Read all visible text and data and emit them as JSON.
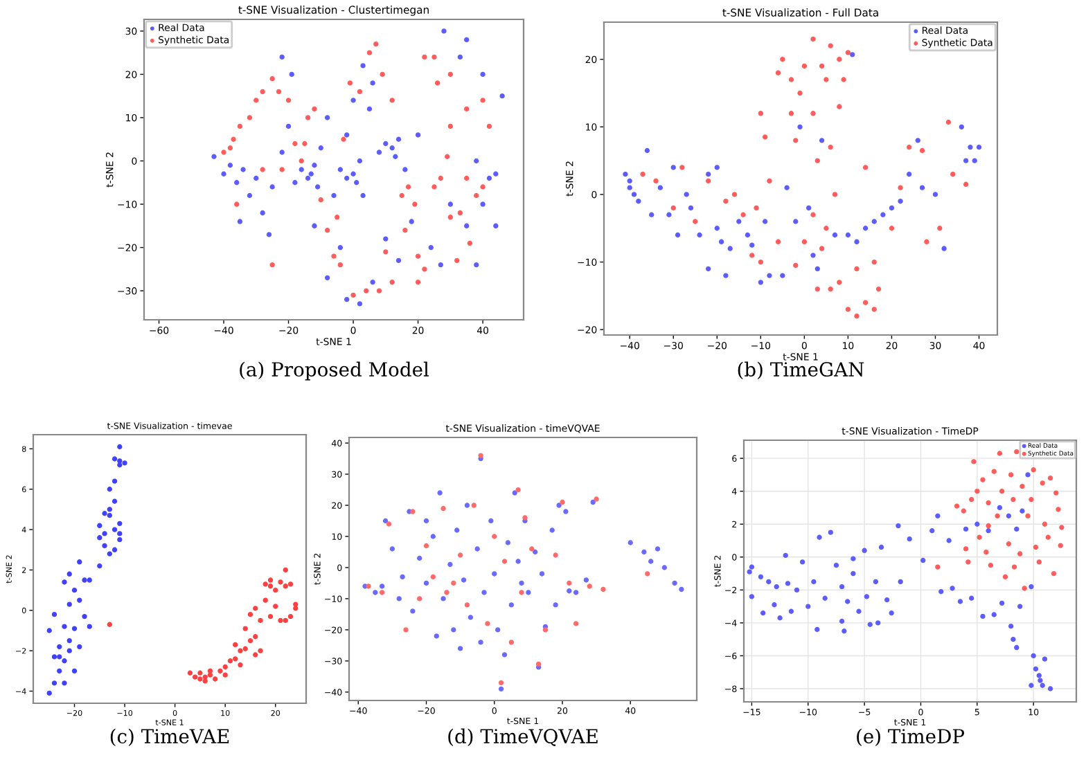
{
  "chart_data": [
    {
      "type": "scatter",
      "title": "t-SNE Visualization - Clustertimegan",
      "xlabel": "t-SNE 1",
      "ylabel": "t-SNE 2",
      "annotations": [
        "(a) Proposed Model"
      ],
      "marker": "circle",
      "legend": "top left",
      "xlim": [
        -64.6,
        52.6
      ],
      "ylim": [
        -36.7,
        32.7
      ],
      "xticks": [
        -60,
        -40,
        -20,
        0,
        20,
        40
      ],
      "yticks": [
        -30,
        -20,
        -10,
        0,
        10,
        20,
        30
      ],
      "series": [
        {
          "name": "Real Data",
          "color": "#5c5cff",
          "x": [
            -43,
            -40,
            -38,
            -36,
            -34,
            -32,
            -30,
            -28,
            -25,
            -22,
            -20,
            -18,
            -16,
            -14,
            -13,
            -12,
            -11,
            -10,
            -8,
            -6,
            -4,
            -2,
            0,
            1,
            2,
            3,
            5,
            6,
            3,
            0,
            -2,
            8,
            10,
            12,
            13,
            14,
            16,
            18,
            20,
            24,
            27,
            30,
            35,
            38,
            40,
            42,
            44,
            46,
            40,
            35,
            28,
            -22,
            -19,
            -12,
            -8,
            -2,
            2,
            6,
            10,
            14,
            -4,
            -26,
            -35,
            38,
            44,
            33
          ],
          "values": [
            1,
            -3,
            -1,
            -5,
            -2,
            -8,
            -4,
            -12,
            -6,
            2,
            8,
            -5,
            -2,
            -4,
            -3,
            -1,
            -6,
            3,
            10,
            -8,
            -2,
            -4,
            -3,
            -5,
            0,
            -8,
            12,
            18,
            22,
            14,
            6,
            2,
            4,
            3,
            1,
            5,
            -2,
            -14,
            6,
            -20,
            -24,
            -10,
            -15,
            0,
            -10,
            -4,
            -3,
            15,
            20,
            28,
            30,
            24,
            20,
            -15,
            -27,
            -32,
            -33,
            -28,
            -18,
            -23,
            -20,
            -17,
            -14,
            -24,
            -15,
            24
          ]
        },
        {
          "name": "Synthetic Data",
          "color": "#ff5c5c",
          "x": [
            -40,
            -38,
            -37,
            -36,
            -35,
            -32,
            -30,
            -28,
            -25,
            -23,
            -20,
            -18,
            -16,
            -14,
            -12,
            -10,
            -8,
            -6,
            -4,
            -3,
            -1,
            2,
            5,
            7,
            9,
            12,
            15,
            17,
            19,
            20,
            22,
            20,
            25,
            27,
            29,
            30,
            33,
            35,
            38,
            40,
            40,
            42,
            35,
            30,
            26,
            22,
            25,
            30,
            -25,
            -22,
            0,
            4,
            8,
            12,
            10,
            -28,
            -15,
            -5,
            16,
            32,
            36
          ],
          "values": [
            2,
            3,
            5,
            -10,
            8,
            10,
            14,
            16,
            19,
            16,
            14,
            4,
            0,
            10,
            12,
            -9,
            -16,
            -22,
            -24,
            5,
            18,
            16,
            25,
            27,
            20,
            14,
            -8,
            -6,
            -10,
            -22,
            -25,
            -28,
            -6,
            -4,
            1,
            -13,
            -12,
            -4,
            -8,
            -6,
            14,
            8,
            12,
            8,
            18,
            24,
            24,
            20,
            -24,
            -2,
            -31,
            -30,
            -30,
            -28,
            -21,
            -2,
            4,
            -13,
            -16,
            -23,
            -19
          ]
        }
      ]
    },
    {
      "type": "scatter",
      "title": "t-SNE Visualization - Full Data",
      "xlabel": "t-SNE 1",
      "ylabel": "t-SNE 2",
      "annotations": [
        "(b) TimeGAN"
      ],
      "marker": "circle",
      "legend": "top right",
      "xlim": [
        -45.9,
        44.2
      ],
      "ylim": [
        -20.8,
        25.5
      ],
      "xticks": [
        -40,
        -30,
        -20,
        -10,
        0,
        10,
        20,
        30,
        40
      ],
      "yticks": [
        -20,
        -10,
        0,
        10,
        20
      ],
      "series": [
        {
          "name": "Real Data",
          "color": "#5c5cff",
          "x": [
            -40,
            -40,
            -39,
            -41,
            -38,
            -36,
            -35,
            -33,
            -31,
            -29,
            -27,
            -26,
            -24,
            -22,
            -20,
            -19,
            -18,
            -17,
            -15,
            -13,
            -12,
            -10,
            -8,
            -9,
            -22,
            -30,
            -20,
            -4,
            -2,
            -1,
            1,
            2,
            3,
            4,
            7,
            10,
            12,
            14,
            16,
            18,
            20,
            22,
            24,
            26,
            27,
            30,
            32,
            36,
            38,
            39,
            40,
            37,
            -5,
            11
          ],
          "values": [
            1,
            2,
            0,
            3,
            -1,
            6.5,
            -3,
            1,
            -3,
            -6,
            0,
            -2,
            -6,
            -11,
            -5,
            -7,
            -12,
            -8,
            -4,
            -6,
            -7.5,
            -13,
            -12,
            -4,
            3,
            4,
            4,
            1,
            -4,
            10,
            -2,
            -9,
            -11,
            8,
            -6,
            -6,
            -7,
            -5,
            -4,
            -3,
            -2,
            -1,
            3,
            8,
            1,
            0,
            -8,
            10,
            7,
            5,
            7,
            5,
            -12,
            20.7
          ]
        },
        {
          "name": "Synthetic Data",
          "color": "#ff5c5c",
          "x": [
            -37,
            -34,
            -30,
            -28,
            -25,
            -22,
            -18,
            -16,
            -14,
            -12,
            -11,
            -10,
            -10,
            -9,
            -8,
            -6,
            -6,
            -5,
            -3,
            -3,
            -2,
            -1,
            0,
            2,
            2,
            3,
            4,
            5,
            6,
            8,
            9,
            10,
            8,
            6,
            7,
            5,
            4,
            2,
            0,
            -2,
            3,
            6,
            8,
            10,
            12,
            14,
            16,
            17,
            12,
            16,
            20,
            24,
            27,
            28,
            31,
            33,
            34,
            37,
            14,
            22
          ],
          "values": [
            3,
            2,
            -2,
            4,
            -4,
            2,
            -1,
            0,
            -3,
            -9,
            -2,
            -10,
            12,
            8.5,
            2,
            -7,
            18,
            20,
            17,
            12,
            8,
            15,
            19,
            23,
            12,
            5,
            19,
            17,
            22,
            20,
            17,
            21,
            13,
            7,
            0,
            -5,
            -8,
            -3,
            -7,
            -10.5,
            -14,
            -14,
            -13,
            -17,
            -18,
            -16,
            -17,
            -14,
            -11,
            -10,
            -5,
            7,
            6.5,
            -7,
            -5,
            10.7,
            3,
            1.5,
            4,
            1
          ]
        }
      ]
    },
    {
      "type": "scatter",
      "title": "t-SNE Visualization - timevae",
      "xlabel": "t-SNE 1",
      "ylabel": "t-SNE 2",
      "annotations": [
        "(c) TimeVAE"
      ],
      "marker": "circle",
      "xlim": [
        -28.2,
        26.1
      ],
      "ylim": [
        -4.6,
        8.7
      ],
      "xticks": [
        -20,
        -10,
        0,
        10,
        20
      ],
      "yticks": [
        -4,
        -2,
        0,
        2,
        4,
        6,
        8
      ],
      "series": [
        {
          "color": "#4040ff",
          "x": [
            -25,
            -24,
            -24,
            -23,
            -23,
            -22,
            -22,
            -21,
            -21,
            -20,
            -20,
            -19,
            -19,
            -18,
            -18,
            -17,
            -17,
            -19,
            -21,
            -22,
            -24,
            -23,
            -25,
            -21,
            -20,
            -22,
            -15,
            -14,
            -13,
            -12,
            -11,
            -15,
            -14,
            -13,
            -12,
            -11,
            -13,
            -12,
            -13,
            -11,
            -12,
            -11,
            -10,
            -11,
            -14,
            -12,
            -11,
            -15
          ],
          "values": [
            -4.1,
            -3.6,
            -2.3,
            -3,
            -1.8,
            -2.5,
            -0.8,
            -1.5,
            0.3,
            -0.9,
            1,
            0.5,
            -1.8,
            -0.3,
            1.5,
            1.5,
            -0.8,
            2.4,
            1.8,
            1.4,
            -0.2,
            -2.3,
            -1,
            -2,
            -3,
            -3.6,
            2.2,
            3.2,
            2.8,
            3,
            3.5,
            4.2,
            3.8,
            4.7,
            5.4,
            4.3,
            6,
            6.4,
            5,
            7.2,
            7.5,
            7.4,
            7.3,
            8.1,
            4.8,
            4,
            3.8,
            3.6
          ]
        },
        {
          "color": "#ff4040",
          "x": [
            -13,
            3,
            4,
            5,
            6,
            7,
            8,
            9,
            10,
            11,
            12,
            13,
            14,
            15,
            16,
            14,
            15,
            17,
            18,
            19,
            20,
            21,
            22,
            23,
            24,
            24,
            23,
            22,
            20,
            19,
            17,
            16,
            13,
            12,
            10,
            7,
            5,
            6,
            18,
            16,
            21,
            22,
            19
          ],
          "values": [
            -0.7,
            -3.1,
            -3.3,
            -3.4,
            -3.3,
            -3.2,
            -3.4,
            -3,
            -2.8,
            -2.5,
            -2.4,
            -2,
            -1.9,
            -1.5,
            -1.3,
            -0.9,
            -0.2,
            -0.5,
            0.5,
            1.2,
            1,
            1.4,
            2,
            1.3,
            0.3,
            0.1,
            -0.3,
            -0.5,
            0.2,
            -0.3,
            -2,
            -2.2,
            -2.7,
            -1.7,
            -3.2,
            -3,
            -3.1,
            -3.5,
            1.3,
            0.1,
            -0.5,
            1.2,
            1.5
          ]
        }
      ]
    },
    {
      "type": "scatter",
      "title": "t-SNE Visualization - timeVQVAE",
      "xlabel": "t-SNE 1",
      "ylabel": "t-SNE 2",
      "annotations": [
        "(d) TimeVQVAE"
      ],
      "marker": "circle",
      "xlim": [
        -42.7,
        59.5
      ],
      "ylim": [
        -42.7,
        41.8
      ],
      "xticks": [
        -40,
        -20,
        0,
        20,
        40
      ],
      "yticks": [
        -40,
        -30,
        -20,
        -10,
        0,
        10,
        20,
        30,
        40
      ],
      "series": [
        {
          "color": "#6a6aff",
          "x": [
            -38,
            -35,
            -33,
            -32,
            -30,
            -27,
            -25,
            -24,
            -22,
            -20,
            -18,
            -16,
            -15,
            -13,
            -12,
            -11,
            -9,
            -8,
            -7,
            -5,
            -4,
            -4,
            -3,
            -1,
            0,
            1,
            2,
            3,
            4,
            5,
            6,
            7,
            9,
            10,
            12,
            13,
            14,
            15,
            17,
            19,
            21,
            22,
            24,
            27,
            29,
            40,
            44,
            46,
            48,
            50,
            53,
            55,
            -17,
            -10,
            8,
            18,
            -28,
            -20
          ],
          "values": [
            -6,
            -8,
            -6,
            15,
            6,
            -3,
            18,
            -14,
            3,
            -5,
            10,
            24,
            -10,
            1,
            -20,
            12,
            -4,
            20,
            -16,
            6,
            35,
            -24,
            -8,
            15,
            -2,
            -20,
            -39,
            -28,
            8,
            -12,
            24,
            2,
            15,
            -8,
            5,
            -32,
            -2,
            -19,
            12,
            20,
            18,
            -7.5,
            -8,
            -4,
            21,
            8,
            5,
            2,
            6,
            0,
            -5,
            -7,
            -22,
            -26,
            -5,
            -12,
            -10,
            15
          ]
        },
        {
          "color": "#ff6a6a",
          "x": [
            -37,
            -33,
            -31,
            -24,
            -22,
            -20,
            -18,
            -15,
            -12,
            -10,
            -8,
            -6,
            -4,
            -2,
            0,
            2,
            3,
            5,
            7,
            8,
            9,
            11,
            13,
            15,
            18,
            20,
            22,
            24,
            28,
            30,
            32,
            45,
            -26,
            -14
          ],
          "values": [
            -6,
            -8,
            14,
            18,
            -10,
            7,
            -3,
            19,
            -5,
            4,
            -12,
            20,
            36,
            -18,
            10,
            -37,
            2,
            -24,
            25,
            -8,
            16,
            6,
            -31,
            -20,
            4,
            21,
            -5,
            -18,
            -6,
            22,
            -7,
            -2,
            -20,
            -8
          ]
        }
      ]
    },
    {
      "type": "scatter",
      "title": "t-SNE Visualization - TimeDP",
      "xlabel": "t-SNE 1",
      "ylabel": "t-SNE 2",
      "annotations": [
        "(e) TimeDP"
      ],
      "marker": "circle",
      "legend": "top right",
      "grid": true,
      "xlim": [
        -15.7,
        13.8
      ],
      "ylim": [
        -8.8,
        7.1
      ],
      "xticks": [
        -15,
        -10,
        -5,
        0,
        5,
        10
      ],
      "yticks": [
        -8,
        -6,
        -4,
        -2,
        0,
        2,
        4,
        6
      ],
      "series": [
        {
          "name": "Real Data",
          "color": "#5c5cff",
          "x": [
            -15.2,
            -15,
            -15,
            -14.2,
            -14,
            -13.5,
            -13,
            -12.8,
            -12.5,
            -12,
            -11.8,
            -11.5,
            -11,
            -10.5,
            -10,
            -9.5,
            -9.2,
            -9,
            -8.5,
            -8,
            -7.5,
            -7,
            -7,
            -6.8,
            -6.5,
            -6,
            -6,
            -5.5,
            -5,
            -4.8,
            -4.5,
            -4,
            -3.8,
            -3.5,
            -3,
            -2.6,
            -2,
            -1.8,
            -1,
            0.2,
            1,
            1.5,
            1.8,
            2.5,
            2.8,
            3.5,
            4,
            4.5,
            5,
            5.5,
            6,
            6.5,
            7,
            7.2,
            7.8,
            8,
            8.2,
            8.5,
            8.8,
            9,
            9.5,
            9.8,
            10,
            10.2,
            10.5,
            10.6,
            10.8,
            9.8,
            11,
            11.5,
            8.5
          ],
          "values": [
            -0.9,
            -0.6,
            -2.4,
            -1.2,
            -3.4,
            -1.5,
            -2.9,
            -1.8,
            -3.7,
            0.1,
            -1.6,
            -3.3,
            -2,
            -0.3,
            -3,
            -1.5,
            -4.4,
            1.2,
            -2.5,
            1.5,
            -0.5,
            -1.8,
            -3.9,
            -4.5,
            -2.7,
            -0.1,
            -1,
            -3.3,
            0.4,
            -2.4,
            -4.1,
            -1.5,
            -4,
            0.6,
            -2.6,
            -3.4,
            1.9,
            -1.5,
            1.1,
            -0.2,
            1.6,
            2.5,
            -2.1,
            1,
            -1.9,
            -2.7,
            1.7,
            -2.5,
            2,
            -3.6,
            1.6,
            -3.5,
            3,
            -2.8,
            2.5,
            -4.2,
            -5,
            1.7,
            -3,
            2.8,
            5,
            -1.8,
            -6,
            -6.8,
            -7.2,
            -7.5,
            -7.8,
            -7.8,
            -6.2,
            -8,
            -5.5
          ]
        },
        {
          "name": "Synthetic Data",
          "color": "#ff5c5c",
          "x": [
            1.5,
            3.2,
            3.8,
            4,
            4.2,
            4.5,
            4.7,
            5,
            5.2,
            5.5,
            5.8,
            6,
            6.2,
            6.5,
            6.8,
            7,
            7.2,
            7.5,
            7.8,
            8,
            8.2,
            8.5,
            8.8,
            9,
            9.2,
            9.5,
            9.8,
            10,
            10.2,
            10.5,
            10.8,
            11,
            11.5,
            11.8,
            12,
            12.2,
            12.5,
            12.4,
            11.3,
            6,
            8.3
          ],
          "values": [
            -0.6,
            3.1,
            2.8,
            0.5,
            -0.3,
            3.5,
            5.8,
            4,
            1.2,
            4.7,
            0.3,
            3.3,
            -0.5,
            5.2,
            2.5,
            6.3,
            4,
            -1.2,
            0.8,
            5,
            3.5,
            6.4,
            0.2,
            4.3,
            -1.9,
            2.5,
            3.5,
            5.3,
            0.6,
            -0.3,
            4.5,
            2,
            4.8,
            -1,
            3.9,
            2.9,
            1.8,
            0.7,
            1.2,
            1.9,
            -0.6
          ]
        }
      ]
    }
  ]
}
